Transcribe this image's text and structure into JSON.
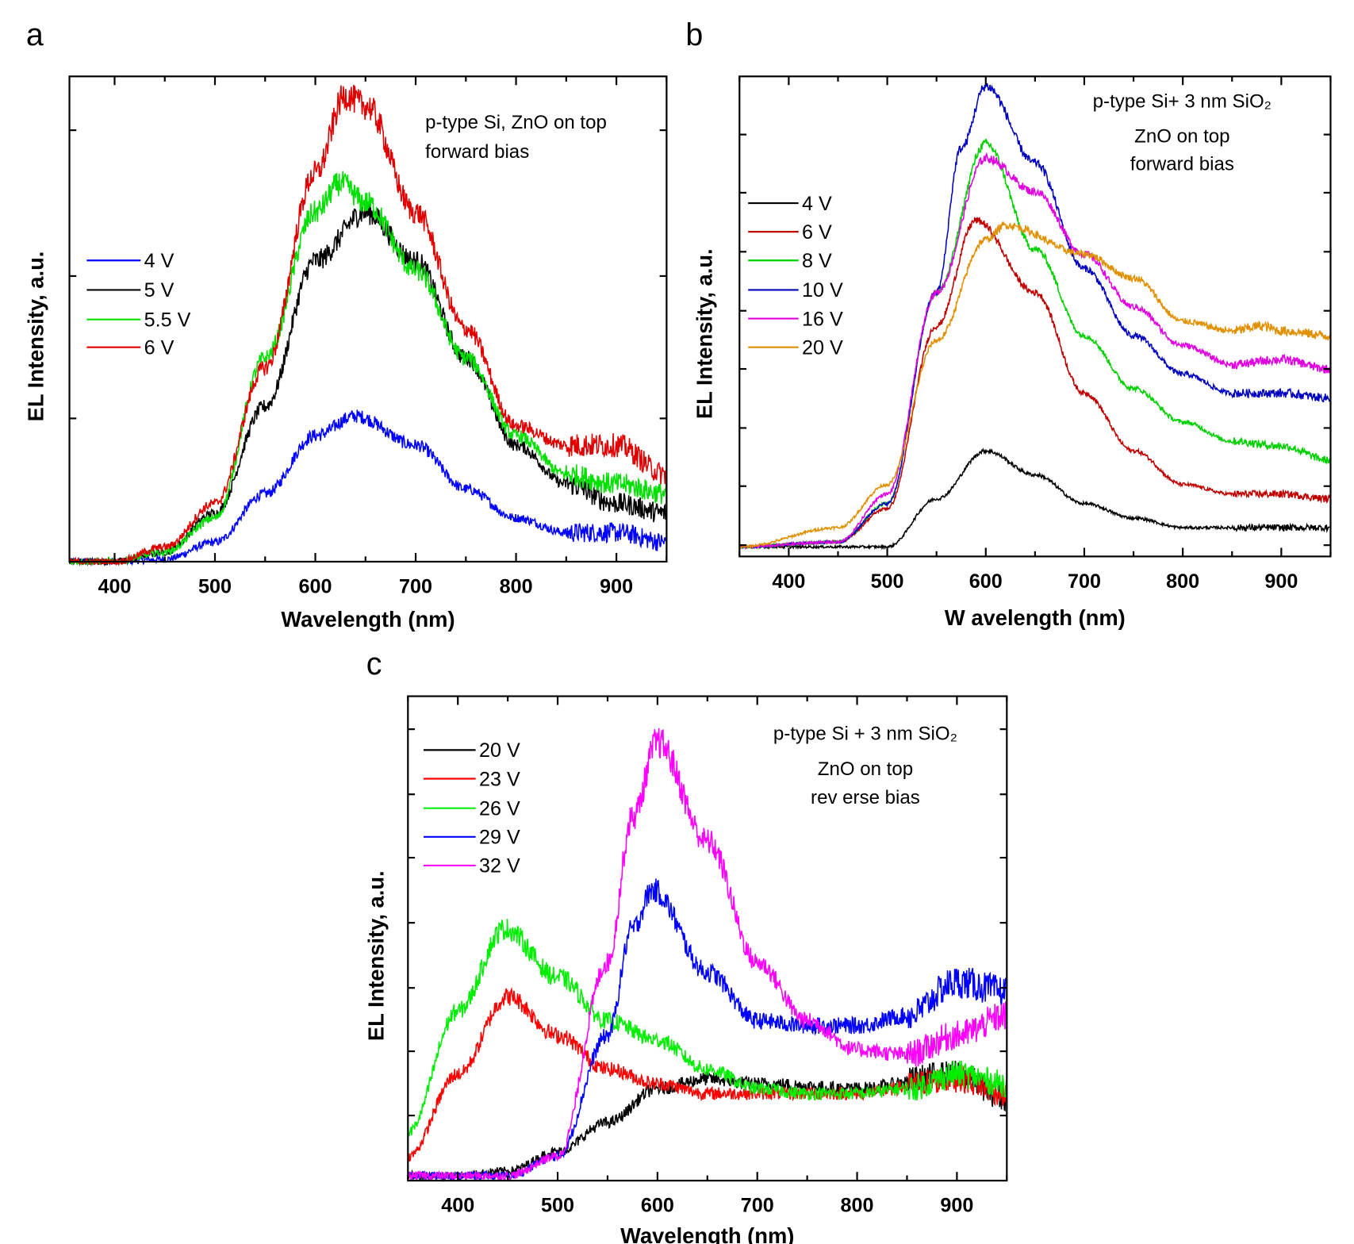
{
  "chart_data": [
    {
      "panel": "a",
      "type": "line",
      "xlabel": "Wavelength (nm)",
      "ylabel": "EL Intensity, a.u.",
      "xlim": [
        355,
        950
      ],
      "ylim": [
        0,
        1
      ],
      "xticks": [
        400,
        500,
        600,
        700,
        800,
        900
      ],
      "annotation": [
        "p-type Si, ZnO on top",
        "forward bias"
      ],
      "legend_placement": "center-left",
      "series": [
        {
          "name": "4 V",
          "color": "#0000ff",
          "x": [
            355,
            400,
            450,
            500,
            550,
            600,
            640,
            700,
            750,
            800,
            850,
            900,
            950
          ],
          "y": [
            0,
            0,
            0.005,
            0.04,
            0.14,
            0.26,
            0.3,
            0.24,
            0.15,
            0.09,
            0.06,
            0.06,
            0.04
          ]
        },
        {
          "name": "5 V",
          "color": "#000000",
          "x": [
            355,
            400,
            450,
            500,
            550,
            600,
            650,
            700,
            750,
            800,
            850,
            900,
            950
          ],
          "y": [
            0,
            0,
            0.02,
            0.1,
            0.32,
            0.62,
            0.72,
            0.62,
            0.42,
            0.24,
            0.16,
            0.12,
            0.1
          ]
        },
        {
          "name": "5.5 V",
          "color": "#00e000",
          "x": [
            355,
            400,
            450,
            500,
            550,
            600,
            625,
            650,
            700,
            750,
            800,
            850,
            900,
            950
          ],
          "y": [
            0,
            0,
            0.02,
            0.09,
            0.42,
            0.72,
            0.78,
            0.74,
            0.6,
            0.42,
            0.26,
            0.18,
            0.16,
            0.14
          ]
        },
        {
          "name": "6 V",
          "color": "#e00000",
          "x": [
            355,
            400,
            450,
            500,
            550,
            600,
            630,
            650,
            700,
            750,
            800,
            850,
            900,
            950
          ],
          "y": [
            0,
            0,
            0.03,
            0.12,
            0.4,
            0.8,
            0.96,
            0.94,
            0.72,
            0.48,
            0.28,
            0.24,
            0.24,
            0.18
          ]
        }
      ]
    },
    {
      "panel": "b",
      "type": "line",
      "xlabel": "W avelength (nm)",
      "ylabel": "EL Intensity, a.u.",
      "xlim": [
        350,
        950
      ],
      "ylim": [
        0,
        1
      ],
      "xticks": [
        400,
        500,
        600,
        700,
        800,
        900
      ],
      "annotation": [
        "p-type Si+ 3 nm SiO₂",
        "ZnO on top",
        "forward bias"
      ],
      "legend_placement": "center-left",
      "series": [
        {
          "name": "4 V",
          "color": "#000000",
          "x": [
            350,
            450,
            500,
            550,
            600,
            650,
            700,
            750,
            800,
            900,
            950
          ],
          "y": [
            0.02,
            0.02,
            0.02,
            0.12,
            0.22,
            0.17,
            0.11,
            0.08,
            0.06,
            0.06,
            0.06
          ]
        },
        {
          "name": "6 V",
          "color": "#c00000",
          "x": [
            350,
            450,
            500,
            550,
            590,
            650,
            700,
            750,
            800,
            850,
            900,
            950
          ],
          "y": [
            0.02,
            0.03,
            0.1,
            0.48,
            0.7,
            0.55,
            0.34,
            0.22,
            0.15,
            0.13,
            0.13,
            0.12
          ]
        },
        {
          "name": "8 V",
          "color": "#00d000",
          "x": [
            350,
            450,
            500,
            550,
            600,
            650,
            700,
            750,
            800,
            850,
            900,
            950
          ],
          "y": [
            0.02,
            0.03,
            0.11,
            0.55,
            0.86,
            0.64,
            0.46,
            0.35,
            0.28,
            0.24,
            0.23,
            0.2
          ]
        },
        {
          "name": "10 V",
          "color": "#0000c0",
          "x": [
            350,
            450,
            500,
            550,
            575,
            600,
            650,
            700,
            750,
            800,
            850,
            900,
            950
          ],
          "y": [
            0.02,
            0.03,
            0.11,
            0.55,
            0.85,
            0.98,
            0.82,
            0.6,
            0.46,
            0.38,
            0.34,
            0.34,
            0.33
          ]
        },
        {
          "name": "16 V",
          "color": "#e000e0",
          "x": [
            350,
            450,
            500,
            550,
            600,
            650,
            700,
            750,
            800,
            850,
            900,
            950
          ],
          "y": [
            0.02,
            0.03,
            0.13,
            0.55,
            0.83,
            0.76,
            0.63,
            0.52,
            0.44,
            0.4,
            0.41,
            0.39
          ]
        },
        {
          "name": "20 V",
          "color": "#e09000",
          "x": [
            350,
            450,
            500,
            550,
            600,
            620,
            700,
            750,
            800,
            850,
            880,
            900,
            950
          ],
          "y": [
            0.02,
            0.06,
            0.15,
            0.45,
            0.66,
            0.69,
            0.63,
            0.58,
            0.49,
            0.47,
            0.48,
            0.47,
            0.46
          ]
        }
      ]
    },
    {
      "panel": "c",
      "type": "line",
      "xlabel": "Wavelength (nm)",
      "ylabel": "EL Intensity, a.u.",
      "xlim": [
        350,
        950
      ],
      "ylim": [
        0,
        1
      ],
      "xticks": [
        400,
        500,
        600,
        700,
        800,
        900
      ],
      "annotation": [
        "p-type Si + 3 nm SiO₂",
        "ZnO on top",
        "rev erse bias"
      ],
      "legend_placement": "top-left",
      "series": [
        {
          "name": "20 V",
          "color": "#000000",
          "x": [
            350,
            400,
            450,
            500,
            550,
            600,
            650,
            700,
            800,
            900,
            950
          ],
          "y": [
            0.01,
            0.01,
            0.02,
            0.06,
            0.12,
            0.19,
            0.21,
            0.2,
            0.19,
            0.22,
            0.17
          ]
        },
        {
          "name": "23 V",
          "color": "#ff0000",
          "x": [
            350,
            400,
            450,
            500,
            550,
            600,
            650,
            700,
            800,
            900,
            950
          ],
          "y": [
            0.05,
            0.22,
            0.38,
            0.3,
            0.23,
            0.2,
            0.18,
            0.18,
            0.18,
            0.21,
            0.18
          ]
        },
        {
          "name": "26 V",
          "color": "#00ee00",
          "x": [
            350,
            400,
            447,
            500,
            550,
            600,
            650,
            700,
            750,
            800,
            850,
            900,
            950
          ],
          "y": [
            0.1,
            0.35,
            0.52,
            0.42,
            0.33,
            0.29,
            0.23,
            0.19,
            0.18,
            0.18,
            0.19,
            0.22,
            0.2
          ]
        },
        {
          "name": "29 V",
          "color": "#0000ff",
          "x": [
            350,
            450,
            500,
            550,
            575,
            595,
            650,
            700,
            750,
            800,
            850,
            900,
            950
          ],
          "y": [
            0.01,
            0.01,
            0.05,
            0.3,
            0.52,
            0.6,
            0.43,
            0.33,
            0.32,
            0.32,
            0.34,
            0.41,
            0.39
          ]
        },
        {
          "name": "32 V",
          "color": "#ff00ff",
          "x": [
            350,
            450,
            500,
            550,
            575,
            600,
            650,
            700,
            750,
            800,
            850,
            900,
            950
          ],
          "y": [
            0.01,
            0.01,
            0.05,
            0.45,
            0.75,
            0.905,
            0.7,
            0.45,
            0.33,
            0.27,
            0.26,
            0.3,
            0.34
          ]
        }
      ]
    }
  ],
  "panel_labels": [
    "a",
    "b",
    "c"
  ]
}
